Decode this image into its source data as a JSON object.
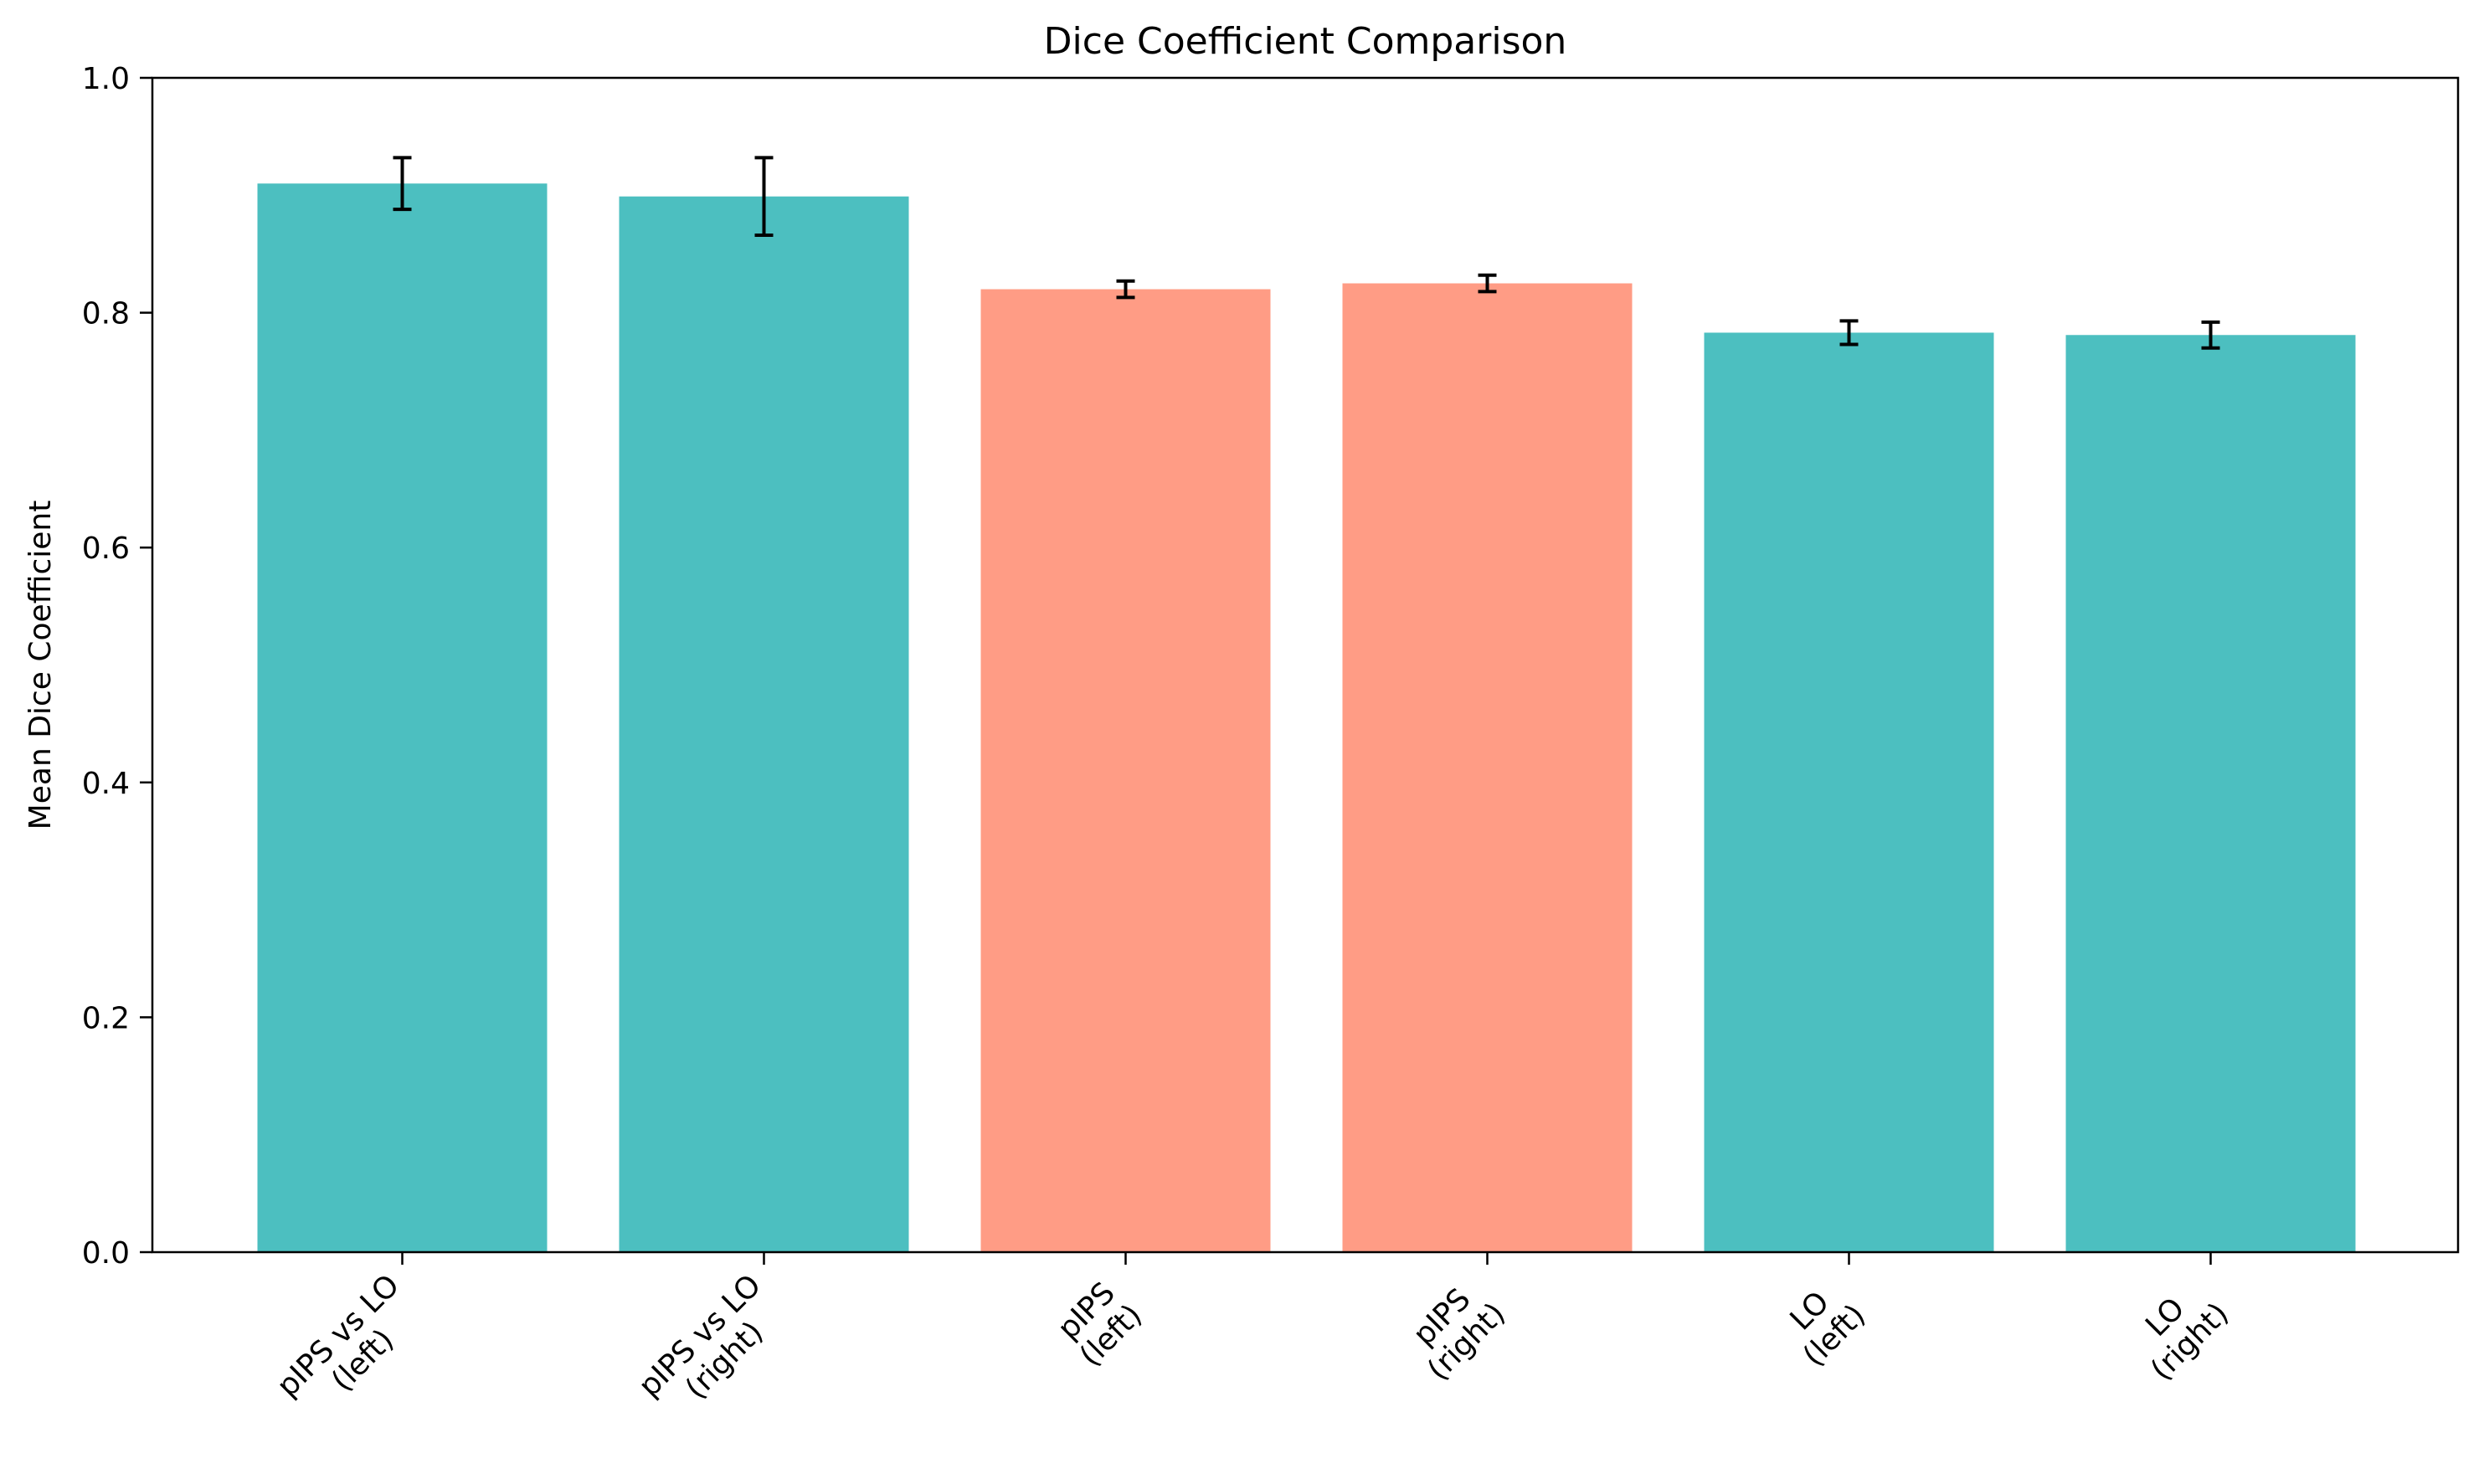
{
  "chart_data": {
    "type": "bar",
    "title": "Dice Coefficient Comparison",
    "xlabel": "",
    "ylabel": "Mean Dice Coefficient",
    "ylim": [
      0,
      1.0
    ],
    "yticks": [
      0.0,
      0.2,
      0.4,
      0.6,
      0.8,
      1.0
    ],
    "ytick_labels": [
      "0.0",
      "0.2",
      "0.4",
      "0.6",
      "0.8",
      "1.0"
    ],
    "grid": false,
    "legend": "none",
    "tick_label_rotation_deg": 45,
    "categories": [
      [
        "pIPS vs LO",
        "(left)"
      ],
      [
        "pIPS vs LO",
        "(right)"
      ],
      [
        "pIPS",
        "(left)"
      ],
      [
        "pIPS",
        "(right)"
      ],
      [
        "LO",
        "(left)"
      ],
      [
        "LO",
        "(right)"
      ]
    ],
    "values": [
      0.91,
      0.899,
      0.82,
      0.825,
      0.783,
      0.781
    ],
    "errors": [
      0.022,
      0.033,
      0.007,
      0.007,
      0.01,
      0.011
    ],
    "colors": [
      "#4cbfc0",
      "#4cbfc0",
      "#ff9c85",
      "#ff9c85",
      "#4cbfc0",
      "#4cbfc0"
    ],
    "error_color": "#000000",
    "axis_color": "#000000"
  }
}
